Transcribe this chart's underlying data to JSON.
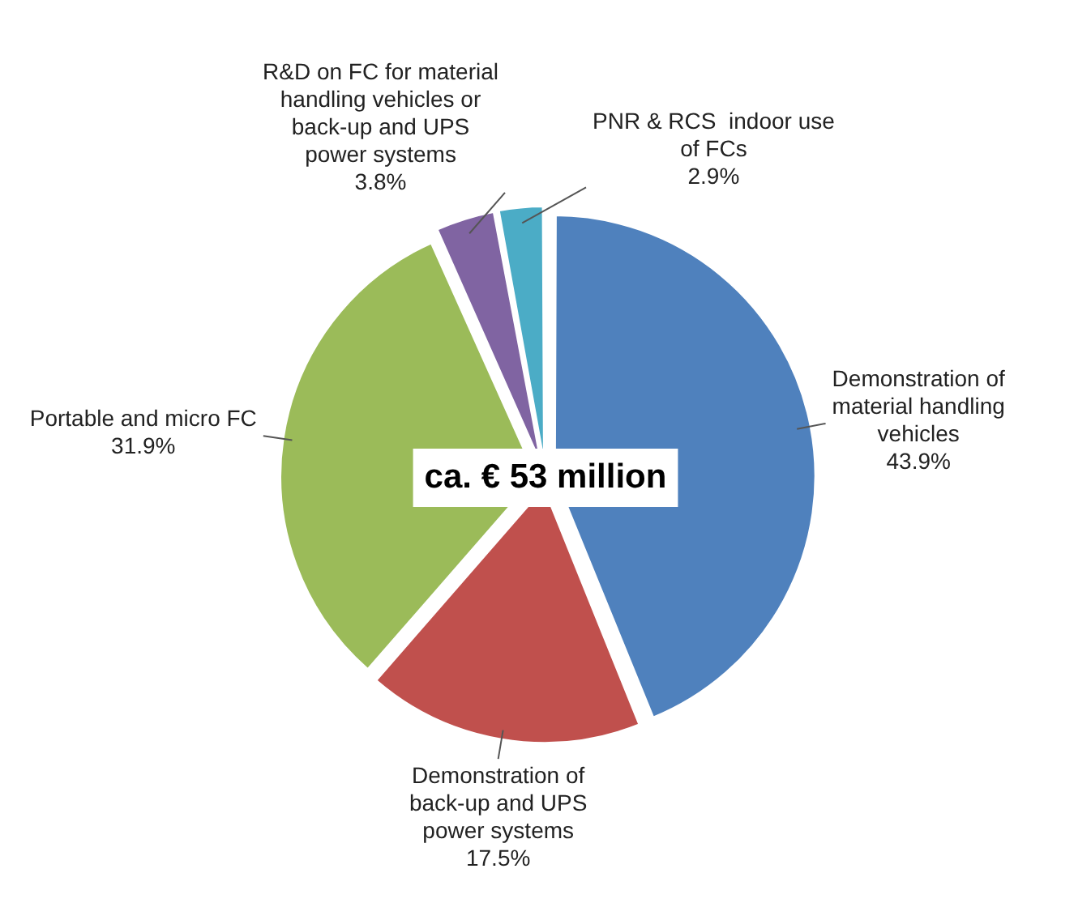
{
  "chart_data": {
    "type": "pie",
    "categories": [
      "Demonstration of material handling vehicles",
      "Demonstration of back-up and UPS power systems",
      "Portable and micro FC",
      "R&D on FC for material handling vehicles or back-up and UPS power systems",
      "PNR & RCS  indoor use of FCs"
    ],
    "values": [
      43.9,
      17.5,
      31.9,
      3.8,
      2.9
    ],
    "value_labels": [
      "43.9%",
      "17.5%",
      "31.9%",
      "3.8%",
      "2.9%"
    ],
    "colors": [
      "#4f81bd",
      "#c0504d",
      "#9bbb59",
      "#8064a2",
      "#4bacc6"
    ],
    "annotations": [
      "ca. € 53 million"
    ]
  }
}
